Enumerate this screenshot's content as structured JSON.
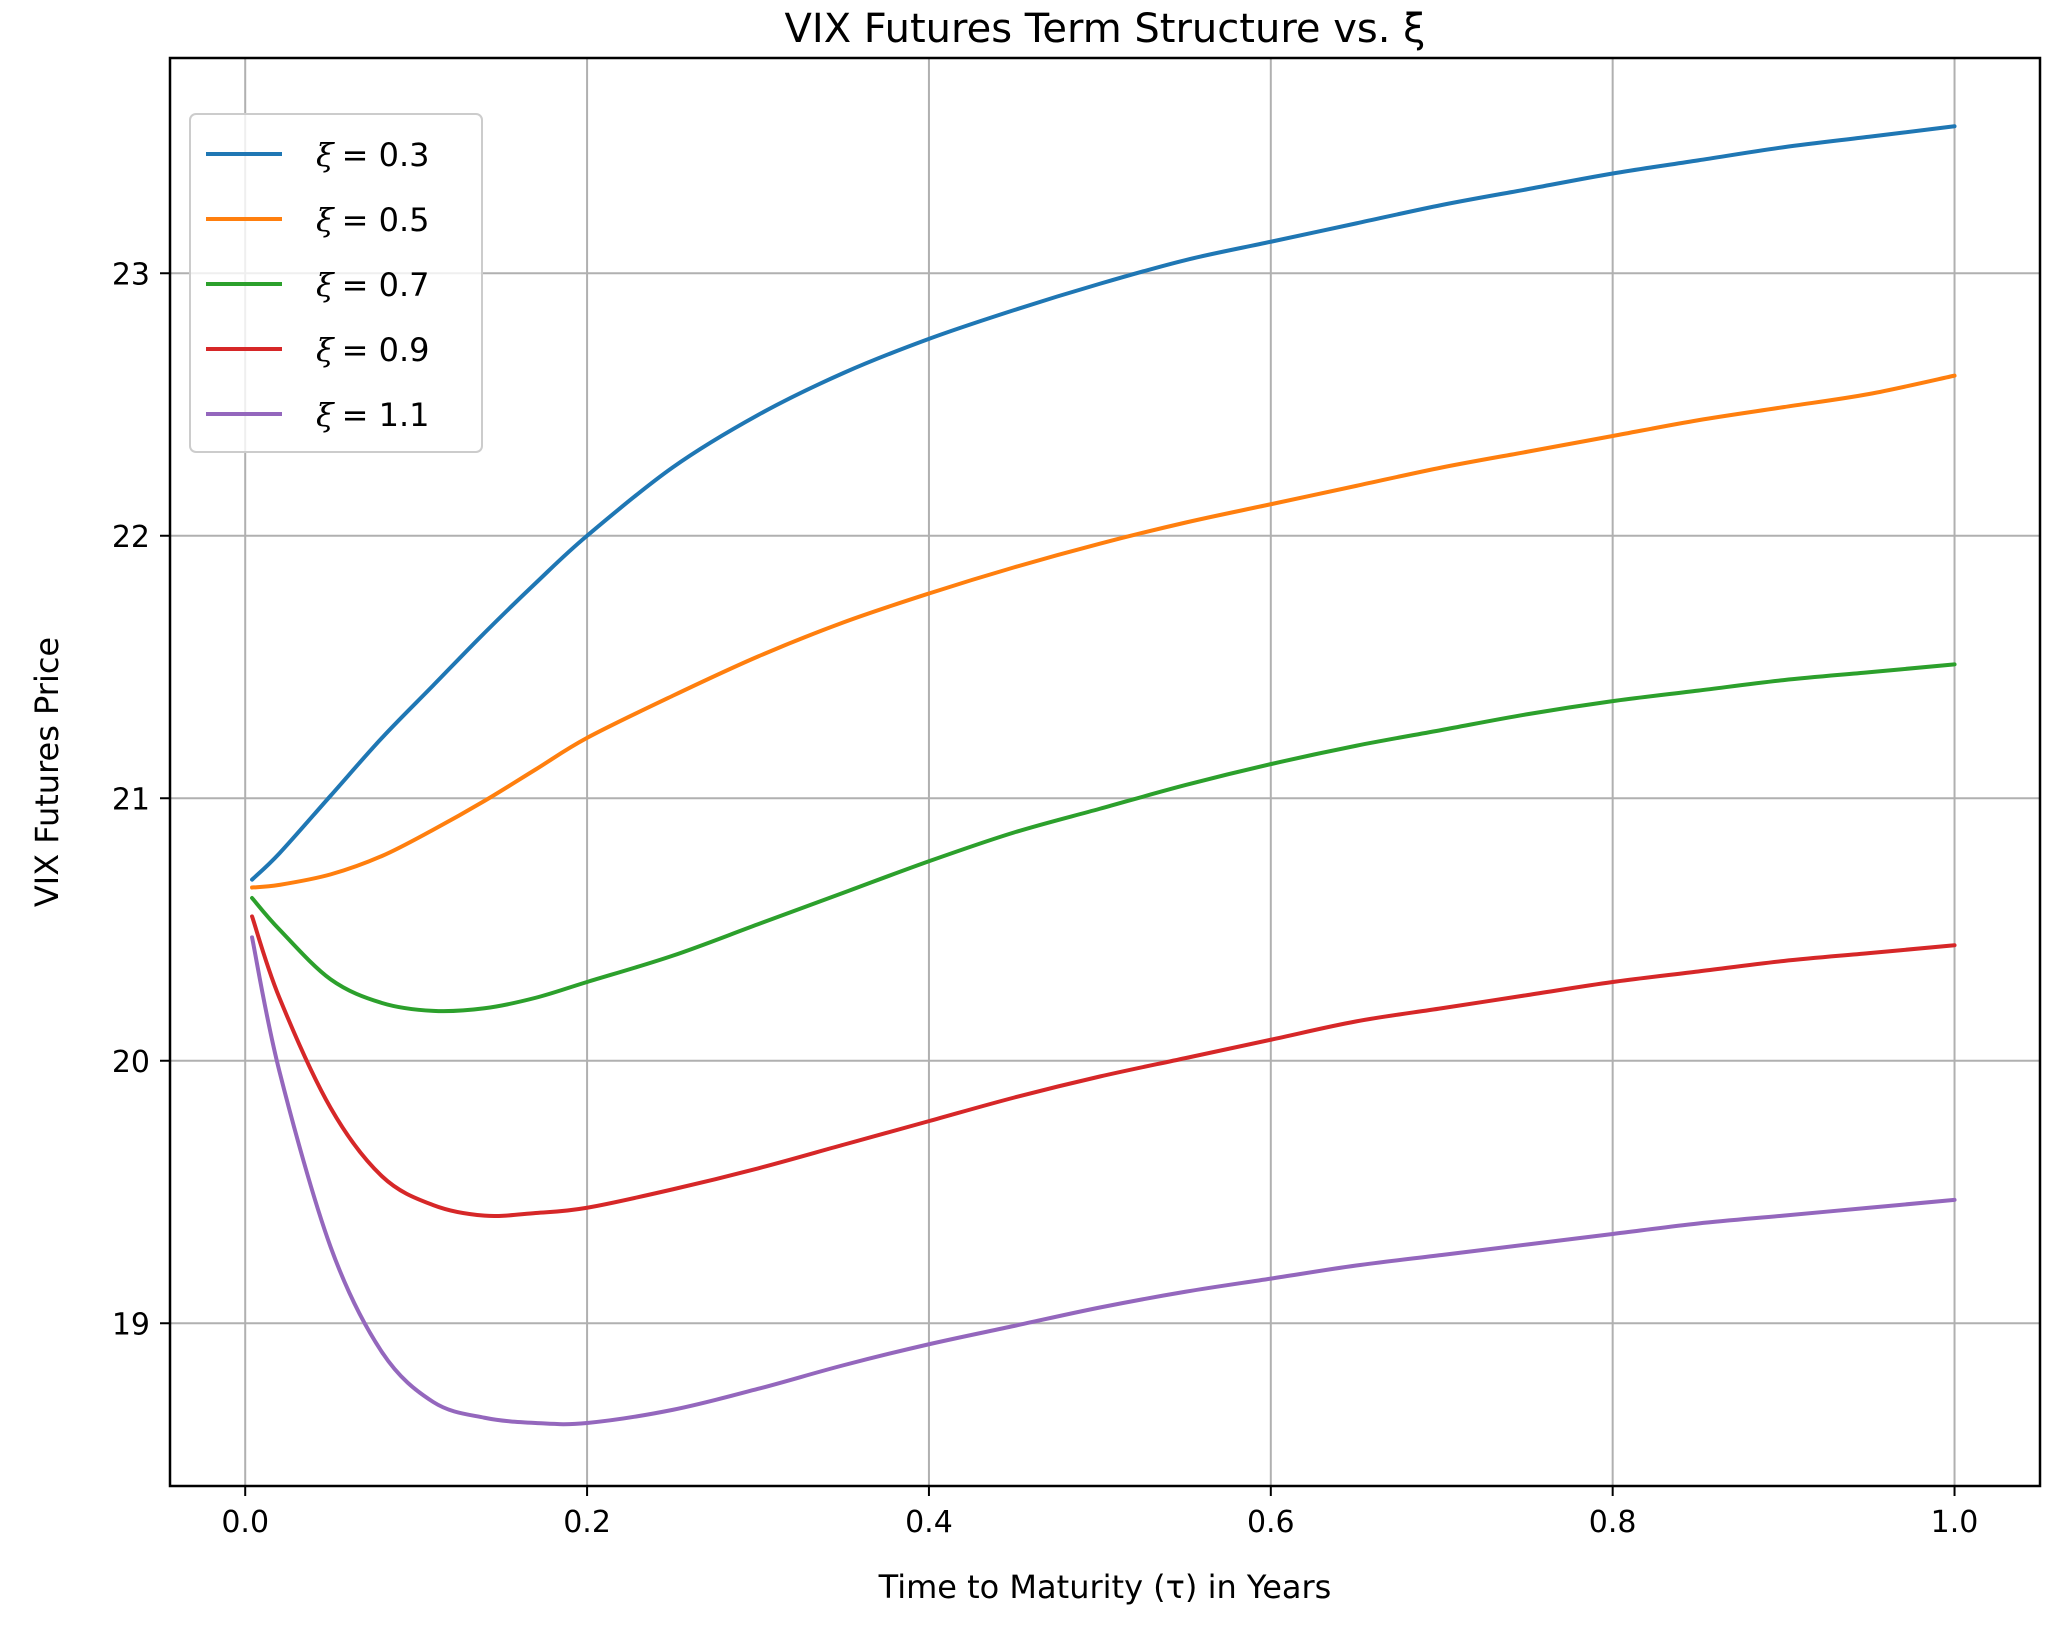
{
  "chart_data": {
    "type": "line",
    "title": "VIX Futures Term Structure vs. ξ",
    "xlabel": "Time to Maturity (τ) in Years",
    "ylabel": "VIX Futures Price",
    "xlim": [
      -0.044,
      1.05
    ],
    "ylim": [
      18.38,
      23.82
    ],
    "xticks": [
      0.0,
      0.2,
      0.4,
      0.6,
      0.8,
      1.0
    ],
    "xtick_labels": [
      "0.0",
      "0.2",
      "0.4",
      "0.6",
      "0.8",
      "1.0"
    ],
    "yticks": [
      19,
      20,
      21,
      22,
      23
    ],
    "ytick_labels": [
      "19",
      "20",
      "21",
      "22",
      "23"
    ],
    "grid": true,
    "legend_position": "top-left",
    "x": [
      0.004,
      0.02,
      0.05,
      0.08,
      0.11,
      0.14,
      0.17,
      0.2,
      0.25,
      0.3,
      0.35,
      0.4,
      0.45,
      0.5,
      0.55,
      0.6,
      0.65,
      0.7,
      0.75,
      0.8,
      0.85,
      0.9,
      0.95,
      1.0
    ],
    "series": [
      {
        "name": "ξ = 0.3",
        "legend_symbol": "ξ",
        "legend_value": "= 0.3",
        "color": "#1f77b4",
        "values": [
          20.69,
          20.79,
          21.01,
          21.23,
          21.43,
          21.63,
          21.82,
          22.0,
          22.26,
          22.46,
          22.62,
          22.75,
          22.86,
          22.96,
          23.05,
          23.12,
          23.19,
          23.26,
          23.32,
          23.38,
          23.43,
          23.48,
          23.52,
          23.56
        ]
      },
      {
        "name": "ξ = 0.5",
        "legend_symbol": "ξ",
        "legend_value": "= 0.5",
        "color": "#ff7f0e",
        "values": [
          20.66,
          20.67,
          20.71,
          20.78,
          20.88,
          20.99,
          21.11,
          21.23,
          21.39,
          21.54,
          21.67,
          21.78,
          21.88,
          21.97,
          22.05,
          22.12,
          22.19,
          22.26,
          22.32,
          22.38,
          22.44,
          22.49,
          22.54,
          22.61
        ]
      },
      {
        "name": "ξ = 0.7",
        "legend_symbol": "ξ",
        "legend_value": "= 0.7",
        "color": "#2ca02c",
        "values": [
          20.62,
          20.5,
          20.31,
          20.22,
          20.19,
          20.2,
          20.24,
          20.3,
          20.4,
          20.52,
          20.64,
          20.76,
          20.87,
          20.96,
          21.05,
          21.13,
          21.2,
          21.26,
          21.32,
          21.37,
          21.41,
          21.45,
          21.48,
          21.51
        ]
      },
      {
        "name": "ξ = 0.9",
        "legend_symbol": "ξ",
        "legend_value": "= 0.9",
        "color": "#d62728",
        "values": [
          20.55,
          20.24,
          19.82,
          19.56,
          19.45,
          19.41,
          19.42,
          19.44,
          19.51,
          19.59,
          19.68,
          19.77,
          19.86,
          19.94,
          20.01,
          20.08,
          20.15,
          20.2,
          20.25,
          20.3,
          20.34,
          20.38,
          20.41,
          20.44
        ]
      },
      {
        "name": "ξ = 1.1",
        "legend_symbol": "ξ",
        "legend_value": "= 1.1",
        "color": "#9467bd",
        "values": [
          20.47,
          19.96,
          19.29,
          18.89,
          18.7,
          18.64,
          18.62,
          18.62,
          18.67,
          18.75,
          18.84,
          18.92,
          18.99,
          19.06,
          19.12,
          19.17,
          19.22,
          19.26,
          19.3,
          19.34,
          19.38,
          19.41,
          19.44,
          19.47
        ]
      }
    ]
  }
}
